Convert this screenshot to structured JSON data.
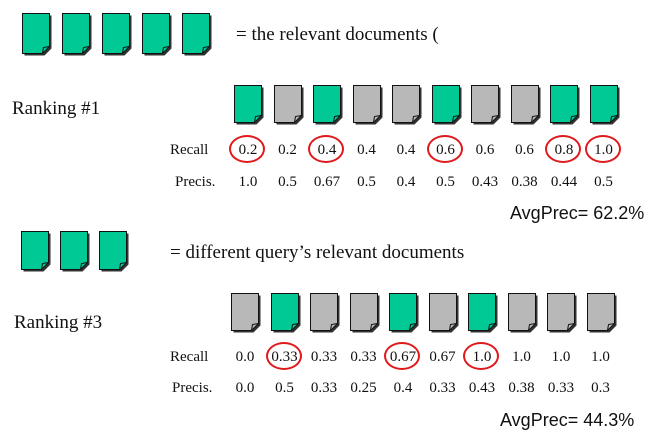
{
  "colors": {
    "relevant": "#00c996",
    "nonrelevant": "#b8b8b8",
    "circle": "#e0191d"
  },
  "icons": {
    "document": "document-page-icon"
  },
  "legend1": {
    "count": 5,
    "color": "relevant",
    "text": "= the relevant documents ("
  },
  "ranking1": {
    "label": "Ranking #1",
    "docs": [
      "relevant",
      "nonrelevant",
      "relevant",
      "nonrelevant",
      "nonrelevant",
      "relevant",
      "nonrelevant",
      "nonrelevant",
      "relevant",
      "relevant"
    ],
    "recall_label": "Recall",
    "recall": [
      "0.2",
      "0.2",
      "0.4",
      "0.4",
      "0.4",
      "0.6",
      "0.6",
      "0.6",
      "0.8",
      "1.0"
    ],
    "circled": [
      0,
      2,
      5,
      8,
      9
    ],
    "precision_label": "Precis.",
    "precision": [
      "1.0",
      "0.5",
      "0.67",
      "0.5",
      "0.4",
      "0.5",
      "0.43",
      "0.38",
      "0.44",
      "0.5"
    ],
    "avgprec": "AvgPrec= 62.2%"
  },
  "legend2": {
    "count": 3,
    "color": "relevant",
    "text": "= different query’s relevant documents"
  },
  "ranking3": {
    "label": "Ranking #3",
    "docs": [
      "nonrelevant",
      "relevant",
      "nonrelevant",
      "nonrelevant",
      "relevant",
      "nonrelevant",
      "relevant",
      "nonrelevant",
      "nonrelevant",
      "nonrelevant"
    ],
    "recall_label": "Recall",
    "recall": [
      "0.0",
      "0.33",
      "0.33",
      "0.33",
      "0.67",
      "0.67",
      "1.0",
      "1.0",
      "1.0",
      "1.0"
    ],
    "circled": [
      1,
      4,
      6
    ],
    "precision_label": "Precis.",
    "precision": [
      "0.0",
      "0.5",
      "0.33",
      "0.25",
      "0.4",
      "0.33",
      "0.43",
      "0.38",
      "0.33",
      "0.3"
    ],
    "avgprec": "AvgPrec= 44.3%"
  }
}
